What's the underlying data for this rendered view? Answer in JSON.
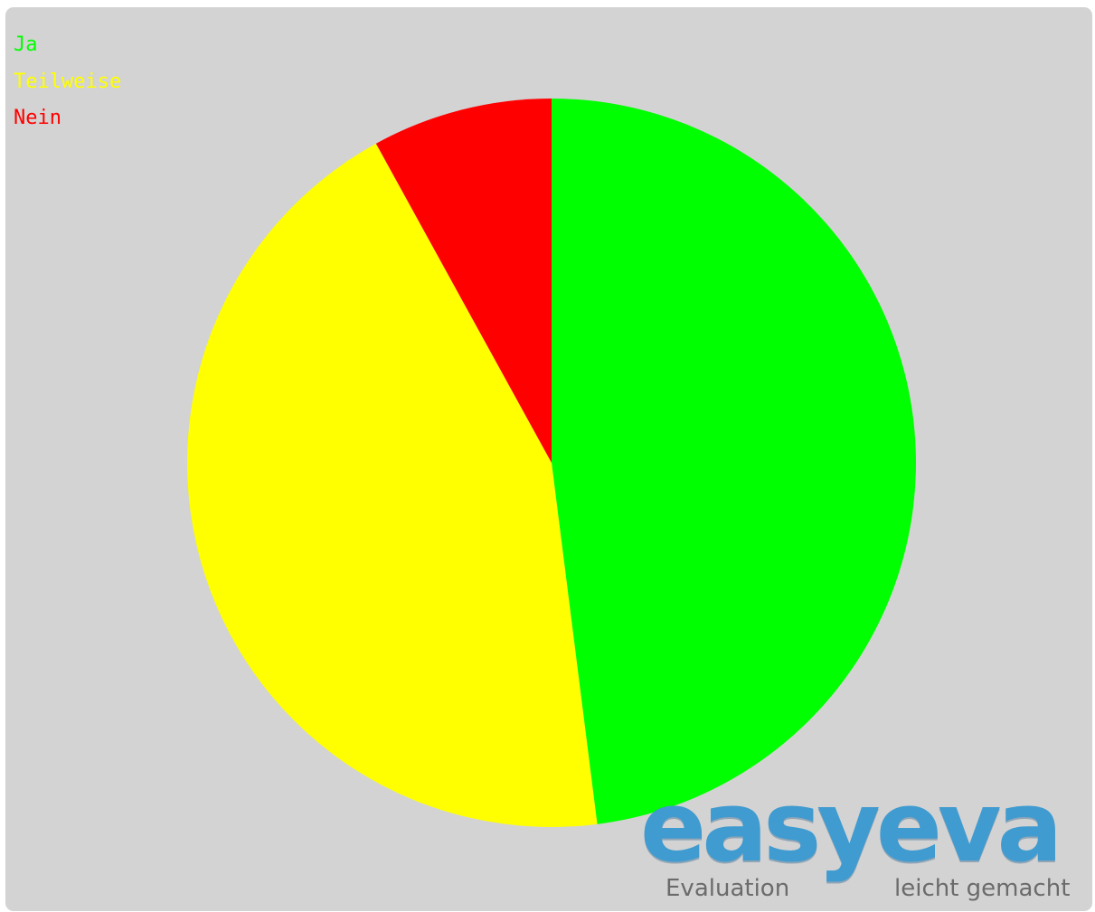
{
  "chart_data": {
    "type": "pie",
    "categories": [
      "Ja",
      "Teilweise",
      "Nein"
    ],
    "values": [
      48,
      44,
      8
    ],
    "colors": [
      "#00ff00",
      "#ffff00",
      "#ff0000"
    ],
    "title": "",
    "legend_position": "top-left",
    "start_angle": "top",
    "direction": "clockwise"
  },
  "branding": {
    "logo_text": "easyeva",
    "tagline_left": "Evaluation",
    "tagline_right": "leicht gemacht",
    "logo_color": "#3f9bd0",
    "tagline_color": "#6b6b6b"
  },
  "colors": {
    "background": "#d3d3d3",
    "page": "#ffffff"
  }
}
